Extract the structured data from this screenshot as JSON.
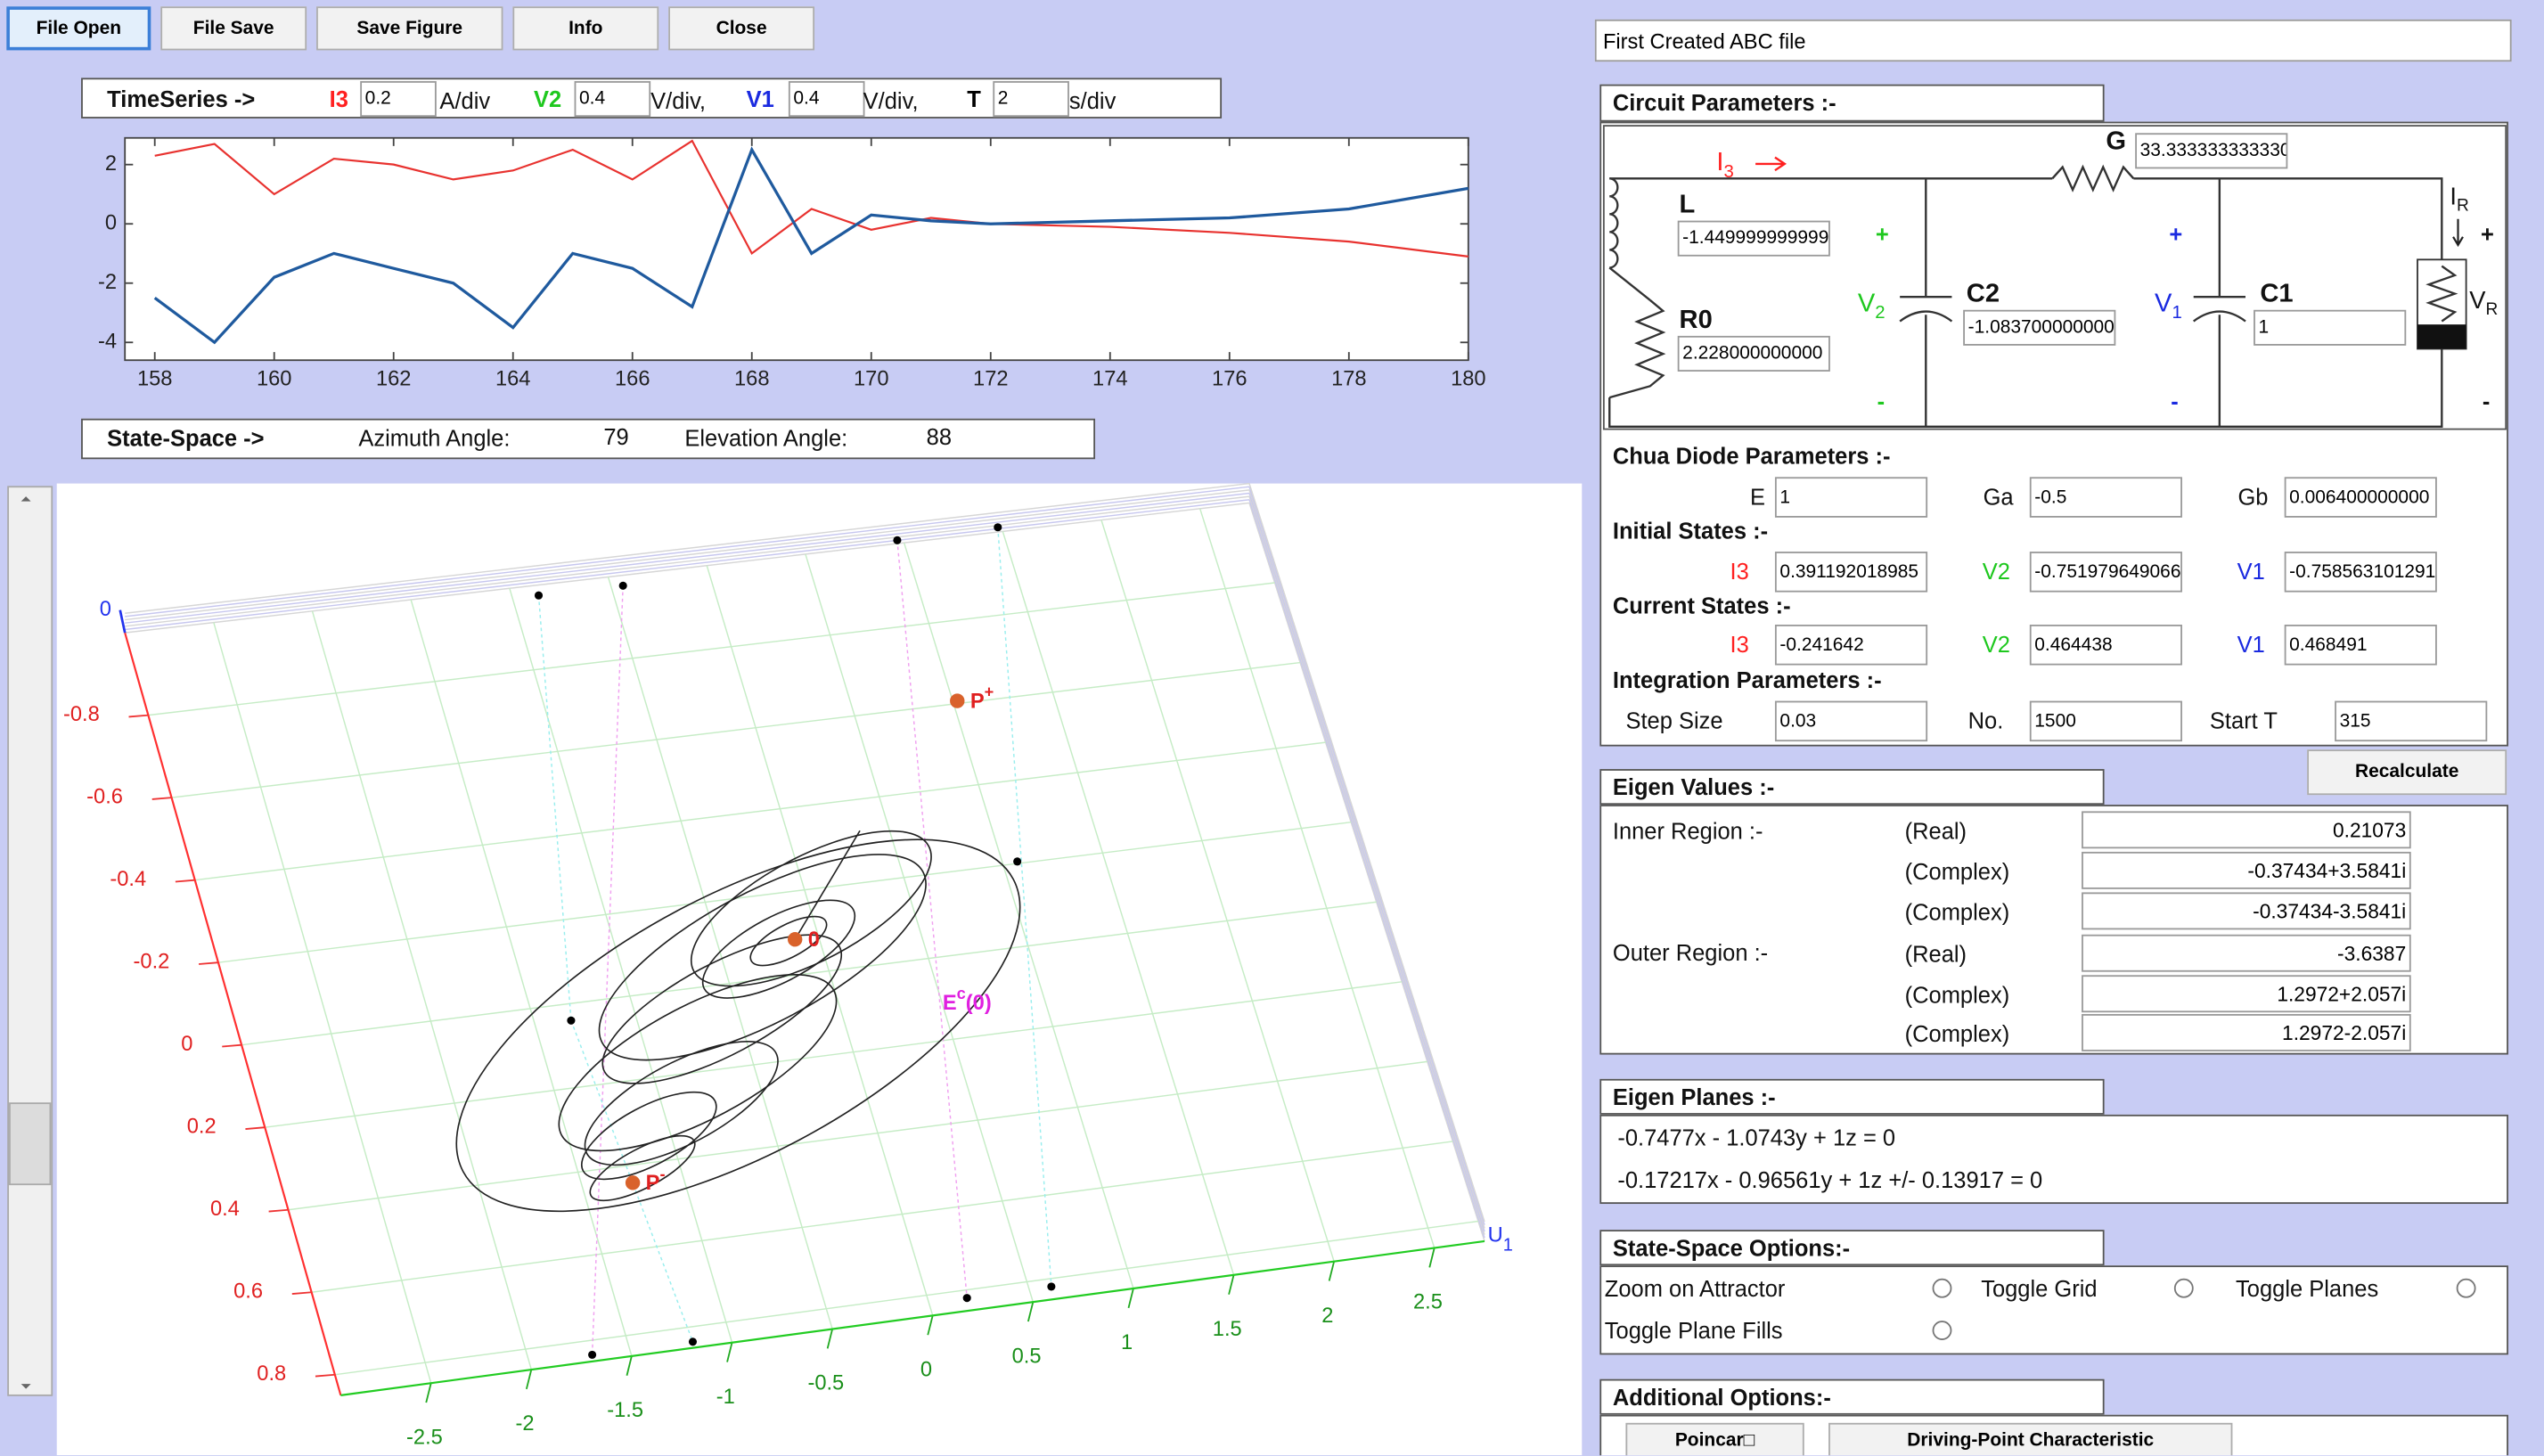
{
  "toolbar": [
    "File Open",
    "File Save",
    "Save Figure",
    "Info",
    "Close"
  ],
  "file_name": "First Created ABC file",
  "timeseries_controls": {
    "label": "TimeSeries ->",
    "channels": [
      {
        "name": "I3",
        "scale": "0.2",
        "unit": "A/div"
      },
      {
        "name": "V2",
        "scale": "0.4",
        "unit": "V/div,"
      },
      {
        "name": "V1",
        "scale": "0.4",
        "unit": "V/div,"
      },
      {
        "name": "T",
        "scale": "2",
        "unit": "s/div"
      }
    ]
  },
  "state_space_controls": {
    "label": "State-Space ->",
    "azimuth_label": "Azimuth Angle:",
    "azimuth": "79",
    "elevation_label": "Elevation Angle:",
    "elevation": "88"
  },
  "chart_data": [
    {
      "type": "line",
      "x": [
        158,
        159,
        160,
        161,
        162,
        163,
        164,
        165,
        166,
        167,
        168,
        169,
        170,
        171,
        172,
        174,
        176,
        178,
        180
      ],
      "series": [
        {
          "color": "#e8322f",
          "values": [
            2.3,
            2.7,
            1.0,
            2.2,
            2.0,
            1.5,
            1.8,
            2.5,
            1.5,
            2.8,
            -1.0,
            0.5,
            -0.2,
            0.2,
            0,
            -0.1,
            -0.3,
            -0.6,
            -1.1
          ]
        },
        {
          "color": "#1f5a9e",
          "values": [
            -2.5,
            -4.0,
            -1.8,
            -1.0,
            -1.5,
            -2.0,
            -3.5,
            -1.0,
            -1.5,
            -2.8,
            2.5,
            -1.0,
            0.3,
            0.1,
            0,
            0.1,
            0.2,
            0.5,
            1.2
          ]
        }
      ],
      "xlim": [
        157.5,
        180
      ],
      "xticks": [
        158,
        160,
        162,
        164,
        166,
        168,
        170,
        172,
        174,
        176,
        178,
        180
      ],
      "ylim": [
        -4.6,
        2.9
      ],
      "yticks": [
        -4,
        -2,
        0,
        2
      ]
    },
    {
      "type": "scatter3d",
      "xlim": [
        -2.95,
        2.75
      ],
      "xticks": [
        -2.5,
        -2,
        -1.5,
        -1,
        -0.5,
        0,
        0.5,
        1,
        1.5,
        2,
        2.5
      ],
      "ylim": [
        -1,
        0.85
      ],
      "yticks": [
        -0.8,
        -0.6,
        -0.4,
        -0.2,
        0,
        0.2,
        0.4,
        0.6,
        0.8
      ],
      "zticks": [
        0
      ],
      "xlabel": "U",
      "xlabel_sub": "1",
      "grid": true,
      "annotations": [
        {
          "text": "P",
          "sup": "+"
        },
        {
          "text": "P",
          "sup": "-"
        },
        {
          "text": "0"
        },
        {
          "text": "E",
          "sup": "c",
          "tail": "(0)"
        }
      ]
    }
  ],
  "circuit": {
    "title": "Circuit Parameters :-",
    "current": {
      "text": "I",
      "sub": "3"
    },
    "G": "G",
    "L": "L",
    "R0": "R0",
    "C2": "C2",
    "C1": "C1",
    "V2": {
      "text": "V",
      "sub": "2"
    },
    "V1": {
      "text": "V",
      "sub": "1"
    },
    "IR": {
      "text": "I",
      "sub": "R"
    },
    "VR": {
      "text": "V",
      "sub": "R"
    },
    "plus": "+",
    "minus": "-",
    "fields": {
      "G": "33.333333333330",
      "L": "-1.449999999999",
      "R0": "2.228000000000",
      "C2": "-1.083700000000",
      "C1": "1"
    }
  },
  "chua_diode": {
    "title": "Chua Diode Parameters :-",
    "fields": [
      {
        "label": "E",
        "value": "1"
      },
      {
        "label": "Ga",
        "value": "-0.5"
      },
      {
        "label": "Gb",
        "value": "0.006400000000"
      }
    ]
  },
  "initial_states": {
    "title": "Initial States :-",
    "fields": [
      {
        "label": "I3",
        "value": "0.391192018985"
      },
      {
        "label": "V2",
        "value": "-0.751979649066"
      },
      {
        "label": "V1",
        "value": "-0.758563101291"
      }
    ]
  },
  "current_states": {
    "title": "Current States :-",
    "fields": [
      {
        "label": "I3",
        "value": "-0.241642"
      },
      {
        "label": "V2",
        "value": "0.464438"
      },
      {
        "label": "V1",
        "value": "0.468491"
      }
    ]
  },
  "integration": {
    "title": "Integration Parameters :-",
    "fields": [
      {
        "label": "Step Size",
        "value": "0.03"
      },
      {
        "label": "No.",
        "value": "1500"
      },
      {
        "label": "Start T",
        "value": "315"
      }
    ]
  },
  "recalculate": "Recalculate",
  "eigen_values": {
    "title": "Eigen Values :-",
    "inner_label": "Inner Region :-",
    "outer_label": "Outer Region :-",
    "rows": [
      {
        "kind": "(Real)",
        "value": "0.21073"
      },
      {
        "kind": "(Complex)",
        "value": "-0.37434+3.5841i"
      },
      {
        "kind": "(Complex)",
        "value": "-0.37434-3.5841i"
      },
      {
        "kind": "(Real)",
        "value": "-3.6387"
      },
      {
        "kind": "(Complex)",
        "value": "1.2972+2.057i"
      },
      {
        "kind": "(Complex)",
        "value": "1.2972-2.057i"
      }
    ]
  },
  "eigen_planes": {
    "title": "Eigen Planes :-",
    "equations": [
      "-0.7477x - 1.0743y + 1z = 0",
      "-0.17217x - 0.96561y + 1z +/- 0.13917 = 0"
    ]
  },
  "state_space_options": {
    "title": "State-Space Options:-",
    "options": [
      "Zoom on Attractor",
      "Toggle Grid",
      "Toggle Planes",
      "Toggle Plane Fills"
    ]
  },
  "additional_options": {
    "title": "Additional Options:-",
    "buttons": [
      "Poincar□",
      "Driving-Point Characteristic"
    ]
  }
}
